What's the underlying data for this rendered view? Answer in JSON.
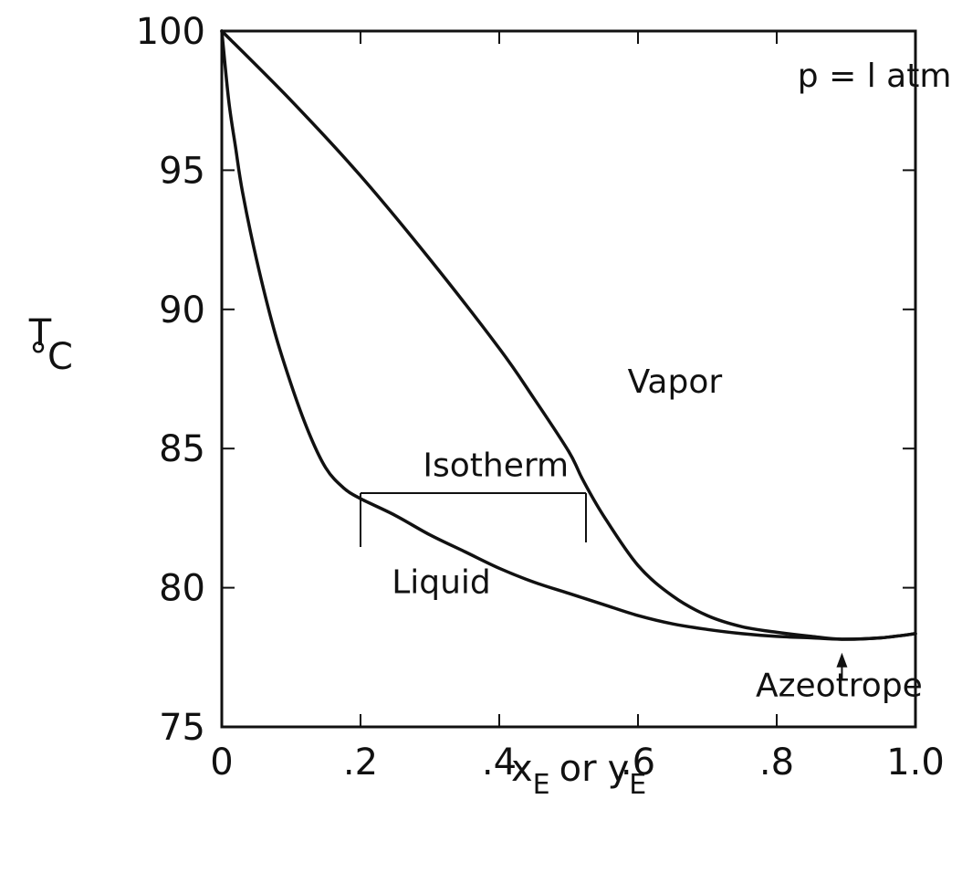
{
  "chart_data": {
    "type": "line",
    "title": "",
    "xlabel": {
      "main": "x",
      "sub": "E",
      "mid": "or",
      "main2": "y",
      "sub2": "E"
    },
    "ylabel": {
      "line1": "T",
      "line2": "°C"
    },
    "xlim": [
      0,
      1.0
    ],
    "ylim": [
      75,
      100
    ],
    "x_ticks": [
      {
        "value": 0,
        "label": "0"
      },
      {
        "value": 0.2,
        "label": ".2"
      },
      {
        "value": 0.4,
        "label": ".4"
      },
      {
        "value": 0.6,
        "label": ".6"
      },
      {
        "value": 0.8,
        "label": ".8"
      },
      {
        "value": 1.0,
        "label": "1.0"
      }
    ],
    "y_ticks": [
      {
        "value": 75,
        "label": "75"
      },
      {
        "value": 80,
        "label": "80"
      },
      {
        "value": 85,
        "label": "85"
      },
      {
        "value": 90,
        "label": "90"
      },
      {
        "value": 95,
        "label": "95"
      },
      {
        "value": 100,
        "label": "100"
      }
    ],
    "grid": false,
    "series": [
      {
        "name": "Liquid",
        "x": [
          0,
          0.01,
          0.02,
          0.03,
          0.05,
          0.075,
          0.1,
          0.125,
          0.15,
          0.175,
          0.2,
          0.25,
          0.3,
          0.35,
          0.4,
          0.45,
          0.5,
          0.55,
          0.6,
          0.65,
          0.7,
          0.75,
          0.8,
          0.85,
          0.894,
          0.95,
          1.0
        ],
        "y": [
          100,
          97.5,
          95.8,
          94.2,
          91.8,
          89.3,
          87.3,
          85.6,
          84.3,
          83.6,
          83.2,
          82.6,
          81.9,
          81.3,
          80.7,
          80.2,
          79.8,
          79.4,
          79.0,
          78.7,
          78.5,
          78.35,
          78.25,
          78.2,
          78.15,
          78.2,
          78.35
        ]
      },
      {
        "name": "Vapor",
        "x": [
          0,
          0.1,
          0.2,
          0.3,
          0.4,
          0.45,
          0.5,
          0.52,
          0.55,
          0.6,
          0.65,
          0.7,
          0.75,
          0.8,
          0.85,
          0.894,
          0.95,
          1.0
        ],
        "y": [
          100,
          97.5,
          94.8,
          91.8,
          88.6,
          86.8,
          84.9,
          83.9,
          82.6,
          80.8,
          79.7,
          79.0,
          78.6,
          78.4,
          78.25,
          78.15,
          78.2,
          78.35
        ]
      }
    ],
    "isotherm": {
      "x_liquid": 0.2,
      "x_vapor": 0.525,
      "T": 83.4
    },
    "annotations": [
      {
        "key": "pressure",
        "text": "p = l atm",
        "x": 0.83,
        "y": 98.0
      },
      {
        "key": "vapor",
        "text": "Vapor",
        "x": 0.585,
        "y": 87.0
      },
      {
        "key": "isotherm",
        "text": "Isotherm",
        "x": 0.29,
        "y": 84.0
      },
      {
        "key": "liquid",
        "text": "Liquid",
        "x": 0.245,
        "y": 79.8
      },
      {
        "key": "azeotrope",
        "text": "Azeotrope",
        "x": 0.89,
        "y": 76.1
      }
    ],
    "azeotrope_x": 0.894
  }
}
